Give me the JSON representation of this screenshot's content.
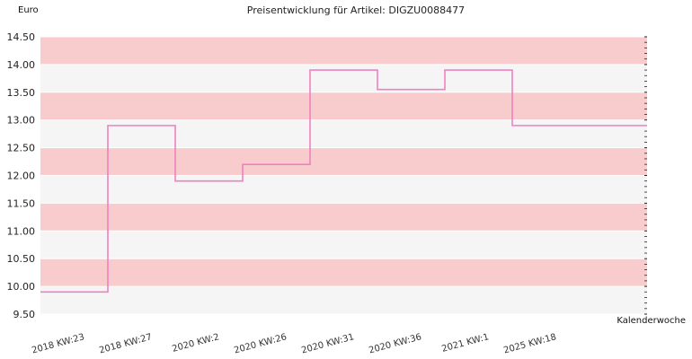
{
  "chart_data": {
    "type": "line",
    "step": true,
    "title": "Preisentwicklung für Artikel: DIGZU0088477",
    "ylabel": "Euro",
    "xlabel": "Kalenderwoche",
    "ylim": [
      9.5,
      14.5
    ],
    "ytick_values": [
      9.5,
      10.0,
      10.5,
      11.0,
      11.5,
      12.0,
      12.5,
      13.0,
      13.5,
      14.0,
      14.5
    ],
    "ytick_labels": [
      "9.50",
      "10.00",
      "10.50",
      "11.00",
      "11.50",
      "12.00",
      "12.50",
      "13.00",
      "13.50",
      "14.00",
      "14.50"
    ],
    "categories": [
      "2018 KW:23",
      "2018 KW:27",
      "2020 KW:2",
      "2020 KW:26",
      "2020 KW:31",
      "2020 KW:36",
      "2021 KW:1",
      "2025 KW:18"
    ],
    "series": [
      {
        "values": [
          9.9,
          12.9,
          11.9,
          12.2,
          13.9,
          13.55,
          13.9,
          12.9
        ]
      }
    ],
    "colors": {
      "line": "#f080c0",
      "band_dark": "#f8cccc",
      "band_light": "#f5f5f5",
      "grid": "#ffffff"
    }
  }
}
